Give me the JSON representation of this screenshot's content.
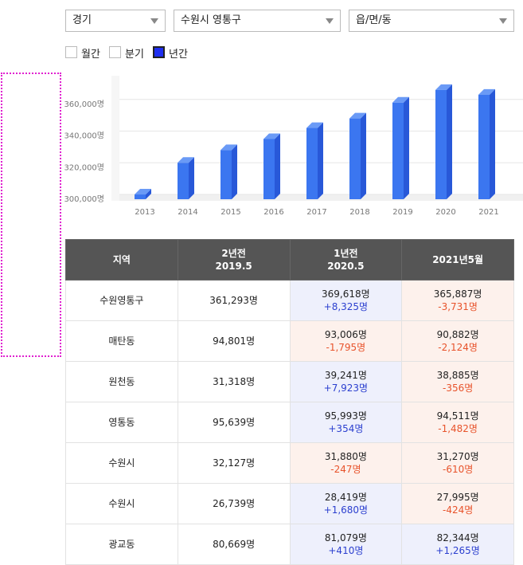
{
  "filters": [
    "경기",
    "수원시 영통구",
    "읍/면/동"
  ],
  "periods": [
    {
      "label": "월간",
      "checked": false
    },
    {
      "label": "분기",
      "checked": false
    },
    {
      "label": "년간",
      "checked": true
    }
  ],
  "chart_data": {
    "type": "bar3d",
    "color": "#3b76f0",
    "categories": [
      "2013",
      "2014",
      "2015",
      "2016",
      "2017",
      "2018",
      "2019",
      "2020",
      "2021"
    ],
    "values": [
      303000,
      323000,
      331000,
      338000,
      345000,
      351000,
      361000,
      369000,
      366000
    ],
    "ylim": [
      300000,
      380000
    ],
    "yticks": [
      {
        "value": 300000,
        "label": "300,000명"
      },
      {
        "value": 320000,
        "label": "320,000명"
      },
      {
        "value": 340000,
        "label": "340,000명"
      },
      {
        "value": 360000,
        "label": "360,000명"
      }
    ],
    "grid": true
  },
  "table": {
    "header": [
      [
        "지역"
      ],
      [
        "2년전",
        "2019.5"
      ],
      [
        "1년전",
        "2020.5"
      ],
      [
        "2021년5월"
      ]
    ],
    "rows": [
      {
        "region": "수원영통구",
        "y2019": "361,293명",
        "y2020": {
          "value": "369,618명",
          "change": "+8,325명"
        },
        "y2021": {
          "value": "365,887명",
          "change": "-3,731명"
        }
      },
      {
        "region": "매탄동",
        "y2019": "94,801명",
        "y2020": {
          "value": "93,006명",
          "change": "-1,795명"
        },
        "y2021": {
          "value": "90,882명",
          "change": "-2,124명"
        }
      },
      {
        "region": "원천동",
        "y2019": "31,318명",
        "y2020": {
          "value": "39,241명",
          "change": "+7,923명"
        },
        "y2021": {
          "value": "38,885명",
          "change": "-356명"
        }
      },
      {
        "region": "영통동",
        "y2019": "95,639명",
        "y2020": {
          "value": "95,993명",
          "change": "+354명"
        },
        "y2021": {
          "value": "94,511명",
          "change": "-1,482명"
        }
      },
      {
        "region": "수원시",
        "y2019": "32,127명",
        "y2020": {
          "value": "31,880명",
          "change": "-247명"
        },
        "y2021": {
          "value": "31,270명",
          "change": "-610명"
        }
      },
      {
        "region": "수원시",
        "y2019": "26,739명",
        "y2020": {
          "value": "28,419명",
          "change": "+1,680명"
        },
        "y2021": {
          "value": "27,995명",
          "change": "-424명"
        }
      },
      {
        "region": "광교동",
        "y2019": "80,669명",
        "y2020": {
          "value": "81,079명",
          "change": "+410명"
        },
        "y2021": {
          "value": "82,344명",
          "change": "+1,265명"
        }
      }
    ]
  }
}
